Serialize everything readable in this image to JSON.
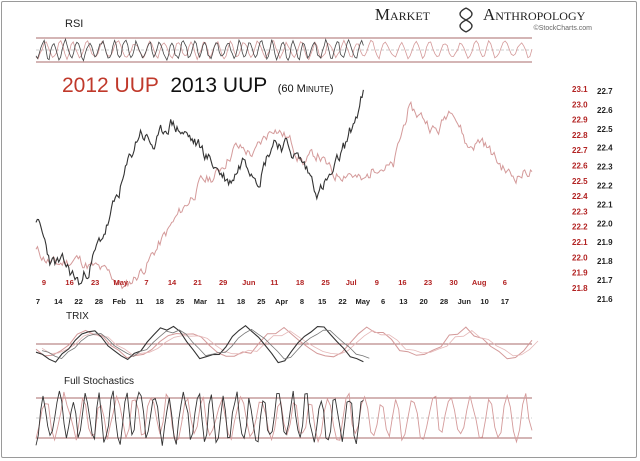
{
  "brand": {
    "name_part1": "Market",
    "name_part2": "Anthropology",
    "source": "©StockCharts.com"
  },
  "colors": {
    "series_2012": "#d49a9a",
    "series_2013": "#444444",
    "title_2012": "#c0392b",
    "axis_2012": "#b22222",
    "axis_2013": "#222222",
    "guide": "#8b3a3a"
  },
  "chart_data": [
    {
      "type": "line",
      "title_parts": [
        "2012 UUP",
        "2013 UUP",
        "(60 Minute)"
      ],
      "x_ticks_2012": [
        "9",
        "16",
        "23",
        "May",
        "7",
        "14",
        "21",
        "29",
        "Jun",
        "11",
        "18",
        "25",
        "Jul",
        "9",
        "16",
        "23",
        "30",
        "Aug",
        "6"
      ],
      "x_ticks_2013": [
        "7",
        "14",
        "22",
        "28",
        "Feb",
        "11",
        "18",
        "25",
        "Mar",
        "11",
        "18",
        "25",
        "Apr",
        "8",
        "15",
        "22",
        "May",
        "6",
        "13",
        "20",
        "28",
        "Jun",
        "10",
        "17"
      ],
      "y_ticks_2012": [
        "23.1",
        "23.0",
        "22.9",
        "22.8",
        "22.7",
        "22.6",
        "22.5",
        "22.4",
        "22.3",
        "22.2",
        "22.1",
        "22.0",
        "21.9",
        "21.8"
      ],
      "y_ticks_2013": [
        "22.7",
        "22.6",
        "22.5",
        "22.4",
        "22.3",
        "22.2",
        "22.1",
        "22.0",
        "21.9",
        "21.8",
        "21.7",
        "21.6"
      ],
      "ylim_2012": [
        21.8,
        23.1
      ],
      "ylim_2013": [
        21.6,
        22.7
      ],
      "series": [
        {
          "name": "2012 UUP",
          "color": "#d49a9a",
          "axis": "2012",
          "x": [
            0,
            0.04,
            0.08,
            0.12,
            0.15,
            0.18,
            0.22,
            0.26,
            0.3,
            0.33,
            0.36,
            0.4,
            0.44,
            0.48,
            0.51,
            0.54,
            0.57,
            0.6,
            0.63,
            0.66,
            0.69,
            0.72,
            0.75,
            0.78,
            0.81,
            0.84,
            0.87,
            0.9,
            0.93,
            0.96,
            1.0
          ],
          "y": [
            22.05,
            21.95,
            22.0,
            21.93,
            21.88,
            21.8,
            21.95,
            22.15,
            22.35,
            22.5,
            22.55,
            22.75,
            22.7,
            22.9,
            22.8,
            22.65,
            22.7,
            22.55,
            22.6,
            22.5,
            22.65,
            22.6,
            23.0,
            22.95,
            22.85,
            23.05,
            22.75,
            22.8,
            22.65,
            22.55,
            22.6
          ]
        },
        {
          "name": "2013 UUP",
          "color": "#444444",
          "axis": "2013",
          "x": [
            0,
            0.03,
            0.06,
            0.09,
            0.12,
            0.15,
            0.18,
            0.21,
            0.24,
            0.27,
            0.3,
            0.33,
            0.36,
            0.39,
            0.42,
            0.45,
            0.48,
            0.51,
            0.54,
            0.57,
            0.6,
            0.63,
            0.66
          ],
          "y": [
            22.0,
            21.75,
            21.72,
            21.62,
            21.8,
            22.0,
            22.25,
            22.5,
            22.4,
            22.55,
            22.48,
            22.4,
            22.3,
            22.2,
            22.35,
            22.25,
            22.45,
            22.4,
            22.3,
            22.15,
            22.25,
            22.45,
            22.7
          ]
        }
      ]
    },
    {
      "type": "line",
      "title": "RSI",
      "guides": [
        30,
        50,
        70
      ],
      "ylim": [
        0,
        100
      ]
    },
    {
      "type": "line",
      "title": "TRIX",
      "guides": [
        0
      ]
    },
    {
      "type": "line",
      "title": "Full Stochastics",
      "guides": [
        20,
        50,
        80
      ],
      "ylim": [
        0,
        100
      ]
    }
  ]
}
